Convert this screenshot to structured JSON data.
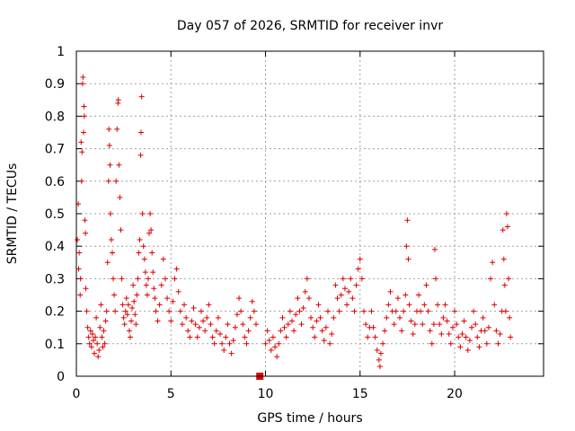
{
  "chart_data": {
    "type": "scatter",
    "title": "Day 057 of 2026, SRMTID for receiver invr",
    "xlabel": "GPS time / hours",
    "ylabel": "SRMTID / TECUs",
    "xlim": [
      0,
      24.7
    ],
    "ylim": [
      0,
      1
    ],
    "x_ticks": [
      0,
      5,
      10,
      15,
      20
    ],
    "x_tick_labels": [
      "0",
      "5",
      "10",
      "15",
      "20"
    ],
    "y_ticks": [
      0,
      0.1,
      0.2,
      0.3,
      0.4,
      0.5,
      0.6,
      0.7,
      0.8,
      0.9,
      1
    ],
    "y_tick_labels": [
      "0",
      "0.1",
      "0.2",
      "0.3",
      "0.4",
      "0.5",
      "0.6",
      "0.7",
      "0.8",
      "0.9",
      "1"
    ],
    "grid": true,
    "marker": "plus",
    "color": "#e00000",
    "gap_marker": {
      "x": 9.7,
      "y": 0
    },
    "series": [
      {
        "name": "SRMTID",
        "points": [
          [
            0.05,
            0.42
          ],
          [
            0.1,
            0.53
          ],
          [
            0.12,
            0.33
          ],
          [
            0.15,
            0.38
          ],
          [
            0.2,
            0.25
          ],
          [
            0.22,
            0.3
          ],
          [
            0.25,
            0.72
          ],
          [
            0.28,
            0.6
          ],
          [
            0.3,
            0.69
          ],
          [
            0.33,
            0.9
          ],
          [
            0.35,
            0.92
          ],
          [
            0.38,
            0.75
          ],
          [
            0.4,
            0.83
          ],
          [
            0.42,
            0.8
          ],
          [
            0.45,
            0.48
          ],
          [
            0.48,
            0.44
          ],
          [
            0.5,
            0.27
          ],
          [
            0.55,
            0.2
          ],
          [
            0.6,
            0.15
          ],
          [
            0.65,
            0.12
          ],
          [
            0.7,
            0.1
          ],
          [
            0.75,
            0.14
          ],
          [
            0.8,
            0.09
          ],
          [
            0.85,
            0.13
          ],
          [
            0.9,
            0.11
          ],
          [
            0.95,
            0.07
          ],
          [
            1.0,
            0.12
          ],
          [
            1.05,
            0.18
          ],
          [
            1.1,
            0.1
          ],
          [
            1.15,
            0.06
          ],
          [
            1.2,
            0.08
          ],
          [
            1.25,
            0.15
          ],
          [
            1.3,
            0.22
          ],
          [
            1.35,
            0.12
          ],
          [
            1.4,
            0.09
          ],
          [
            1.45,
            0.14
          ],
          [
            1.5,
            0.1
          ],
          [
            1.55,
            0.17
          ],
          [
            1.6,
            0.2
          ],
          [
            1.65,
            0.35
          ],
          [
            1.7,
            0.6
          ],
          [
            1.72,
            0.76
          ],
          [
            1.75,
            0.71
          ],
          [
            1.78,
            0.65
          ],
          [
            1.8,
            0.5
          ],
          [
            1.85,
            0.42
          ],
          [
            1.9,
            0.38
          ],
          [
            1.95,
            0.3
          ],
          [
            2.0,
            0.25
          ],
          [
            2.05,
            0.2
          ],
          [
            2.1,
            0.6
          ],
          [
            2.15,
            0.76
          ],
          [
            2.2,
            0.84
          ],
          [
            2.22,
            0.85
          ],
          [
            2.25,
            0.65
          ],
          [
            2.3,
            0.55
          ],
          [
            2.35,
            0.45
          ],
          [
            2.4,
            0.3
          ],
          [
            2.45,
            0.22
          ],
          [
            2.5,
            0.18
          ],
          [
            2.55,
            0.16
          ],
          [
            2.6,
            0.2
          ],
          [
            2.65,
            0.24
          ],
          [
            2.7,
            0.19
          ],
          [
            2.75,
            0.22
          ],
          [
            2.8,
            0.14
          ],
          [
            2.85,
            0.12
          ],
          [
            2.9,
            0.17
          ],
          [
            2.95,
            0.21
          ],
          [
            3.0,
            0.28
          ],
          [
            3.05,
            0.23
          ],
          [
            3.1,
            0.19
          ],
          [
            3.15,
            0.16
          ],
          [
            3.2,
            0.25
          ],
          [
            3.25,
            0.3
          ],
          [
            3.3,
            0.38
          ],
          [
            3.35,
            0.42
          ],
          [
            3.4,
            0.68
          ],
          [
            3.42,
            0.75
          ],
          [
            3.45,
            0.86
          ],
          [
            3.5,
            0.5
          ],
          [
            3.55,
            0.4
          ],
          [
            3.6,
            0.36
          ],
          [
            3.65,
            0.32
          ],
          [
            3.7,
            0.28
          ],
          [
            3.75,
            0.25
          ],
          [
            3.8,
            0.3
          ],
          [
            3.85,
            0.44
          ],
          [
            3.9,
            0.5
          ],
          [
            3.95,
            0.45
          ],
          [
            4.0,
            0.38
          ],
          [
            4.05,
            0.32
          ],
          [
            4.1,
            0.27
          ],
          [
            4.15,
            0.24
          ],
          [
            4.2,
            0.2
          ],
          [
            4.3,
            0.17
          ],
          [
            4.4,
            0.22
          ],
          [
            4.5,
            0.28
          ],
          [
            4.6,
            0.36
          ],
          [
            4.7,
            0.3
          ],
          [
            4.8,
            0.24
          ],
          [
            4.9,
            0.2
          ],
          [
            5.0,
            0.17
          ],
          [
            5.1,
            0.23
          ],
          [
            5.2,
            0.3
          ],
          [
            5.3,
            0.33
          ],
          [
            5.4,
            0.26
          ],
          [
            5.5,
            0.2
          ],
          [
            5.6,
            0.16
          ],
          [
            5.7,
            0.22
          ],
          [
            5.8,
            0.18
          ],
          [
            5.9,
            0.14
          ],
          [
            6.0,
            0.12
          ],
          [
            6.1,
            0.17
          ],
          [
            6.2,
            0.21
          ],
          [
            6.3,
            0.16
          ],
          [
            6.4,
            0.12
          ],
          [
            6.5,
            0.15
          ],
          [
            6.6,
            0.2
          ],
          [
            6.7,
            0.17
          ],
          [
            6.8,
            0.14
          ],
          [
            6.9,
            0.18
          ],
          [
            7.0,
            0.22
          ],
          [
            7.1,
            0.16
          ],
          [
            7.2,
            0.12
          ],
          [
            7.3,
            0.1
          ],
          [
            7.4,
            0.14
          ],
          [
            7.5,
            0.18
          ],
          [
            7.6,
            0.13
          ],
          [
            7.7,
            0.1
          ],
          [
            7.8,
            0.08
          ],
          [
            7.9,
            0.12
          ],
          [
            8.0,
            0.16
          ],
          [
            8.1,
            0.1
          ],
          [
            8.2,
            0.07
          ],
          [
            8.3,
            0.11
          ],
          [
            8.4,
            0.15
          ],
          [
            8.5,
            0.19
          ],
          [
            8.6,
            0.24
          ],
          [
            8.7,
            0.2
          ],
          [
            8.8,
            0.16
          ],
          [
            8.9,
            0.12
          ],
          [
            9.0,
            0.1
          ],
          [
            9.1,
            0.14
          ],
          [
            9.2,
            0.18
          ],
          [
            9.3,
            0.23
          ],
          [
            9.4,
            0.2
          ],
          [
            9.5,
            0.16
          ],
          [
            10.0,
            0.1
          ],
          [
            10.1,
            0.14
          ],
          [
            10.2,
            0.11
          ],
          [
            10.3,
            0.08
          ],
          [
            10.4,
            0.12
          ],
          [
            10.5,
            0.09
          ],
          [
            10.6,
            0.06
          ],
          [
            10.7,
            0.1
          ],
          [
            10.8,
            0.14
          ],
          [
            10.9,
            0.18
          ],
          [
            11.0,
            0.15
          ],
          [
            11.1,
            0.12
          ],
          [
            11.2,
            0.16
          ],
          [
            11.3,
            0.2
          ],
          [
            11.4,
            0.17
          ],
          [
            11.5,
            0.14
          ],
          [
            11.6,
            0.19
          ],
          [
            11.7,
            0.24
          ],
          [
            11.8,
            0.2
          ],
          [
            11.9,
            0.16
          ],
          [
            12.0,
            0.21
          ],
          [
            12.1,
            0.26
          ],
          [
            12.2,
            0.3
          ],
          [
            12.3,
            0.24
          ],
          [
            12.4,
            0.18
          ],
          [
            12.5,
            0.15
          ],
          [
            12.6,
            0.12
          ],
          [
            12.7,
            0.17
          ],
          [
            12.8,
            0.22
          ],
          [
            12.9,
            0.18
          ],
          [
            13.0,
            0.14
          ],
          [
            13.1,
            0.11
          ],
          [
            13.2,
            0.15
          ],
          [
            13.3,
            0.2
          ],
          [
            13.4,
            0.1
          ],
          [
            13.5,
            0.13
          ],
          [
            13.6,
            0.18
          ],
          [
            13.7,
            0.28
          ],
          [
            13.8,
            0.24
          ],
          [
            13.9,
            0.2
          ],
          [
            14.0,
            0.25
          ],
          [
            14.1,
            0.3
          ],
          [
            14.2,
            0.27
          ],
          [
            14.3,
            0.22
          ],
          [
            14.4,
            0.26
          ],
          [
            14.5,
            0.3
          ],
          [
            14.6,
            0.24
          ],
          [
            14.7,
            0.2
          ],
          [
            14.8,
            0.28
          ],
          [
            14.9,
            0.33
          ],
          [
            15.0,
            0.36
          ],
          [
            15.1,
            0.3
          ],
          [
            15.2,
            0.2
          ],
          [
            15.3,
            0.16
          ],
          [
            15.4,
            0.12
          ],
          [
            15.5,
            0.15
          ],
          [
            15.6,
            0.2
          ],
          [
            15.7,
            0.15
          ],
          [
            15.8,
            0.12
          ],
          [
            15.9,
            0.08
          ],
          [
            16.0,
            0.05
          ],
          [
            16.05,
            0.03
          ],
          [
            16.1,
            0.07
          ],
          [
            16.2,
            0.1
          ],
          [
            16.3,
            0.14
          ],
          [
            16.4,
            0.18
          ],
          [
            16.5,
            0.22
          ],
          [
            16.6,
            0.26
          ],
          [
            16.7,
            0.2
          ],
          [
            16.8,
            0.16
          ],
          [
            16.9,
            0.2
          ],
          [
            17.0,
            0.24
          ],
          [
            17.1,
            0.18
          ],
          [
            17.2,
            0.14
          ],
          [
            17.3,
            0.2
          ],
          [
            17.4,
            0.25
          ],
          [
            17.45,
            0.4
          ],
          [
            17.5,
            0.48
          ],
          [
            17.55,
            0.36
          ],
          [
            17.6,
            0.22
          ],
          [
            17.7,
            0.17
          ],
          [
            17.8,
            0.13
          ],
          [
            17.9,
            0.16
          ],
          [
            18.0,
            0.2
          ],
          [
            18.1,
            0.25
          ],
          [
            18.2,
            0.2
          ],
          [
            18.3,
            0.16
          ],
          [
            18.4,
            0.22
          ],
          [
            18.5,
            0.28
          ],
          [
            18.6,
            0.2
          ],
          [
            18.7,
            0.14
          ],
          [
            18.8,
            0.1
          ],
          [
            18.9,
            0.16
          ],
          [
            18.95,
            0.39
          ],
          [
            19.0,
            0.3
          ],
          [
            19.1,
            0.22
          ],
          [
            19.2,
            0.16
          ],
          [
            19.3,
            0.13
          ],
          [
            19.4,
            0.18
          ],
          [
            19.5,
            0.22
          ],
          [
            19.6,
            0.17
          ],
          [
            19.7,
            0.13
          ],
          [
            19.8,
            0.1
          ],
          [
            19.9,
            0.15
          ],
          [
            20.0,
            0.2
          ],
          [
            20.1,
            0.16
          ],
          [
            20.2,
            0.12
          ],
          [
            20.3,
            0.09
          ],
          [
            20.4,
            0.13
          ],
          [
            20.5,
            0.17
          ],
          [
            20.6,
            0.12
          ],
          [
            20.7,
            0.08
          ],
          [
            20.8,
            0.11
          ],
          [
            20.9,
            0.15
          ],
          [
            21.0,
            0.2
          ],
          [
            21.1,
            0.16
          ],
          [
            21.2,
            0.12
          ],
          [
            21.3,
            0.09
          ],
          [
            21.4,
            0.14
          ],
          [
            21.5,
            0.18
          ],
          [
            21.6,
            0.14
          ],
          [
            21.7,
            0.1
          ],
          [
            21.8,
            0.15
          ],
          [
            21.9,
            0.3
          ],
          [
            22.0,
            0.35
          ],
          [
            22.1,
            0.22
          ],
          [
            22.2,
            0.14
          ],
          [
            22.3,
            0.1
          ],
          [
            22.4,
            0.13
          ],
          [
            22.5,
            0.2
          ],
          [
            22.55,
            0.45
          ],
          [
            22.6,
            0.36
          ],
          [
            22.65,
            0.28
          ],
          [
            22.7,
            0.2
          ],
          [
            22.75,
            0.5
          ],
          [
            22.8,
            0.46
          ],
          [
            22.85,
            0.3
          ],
          [
            22.9,
            0.18
          ],
          [
            22.95,
            0.12
          ]
        ]
      }
    ]
  }
}
